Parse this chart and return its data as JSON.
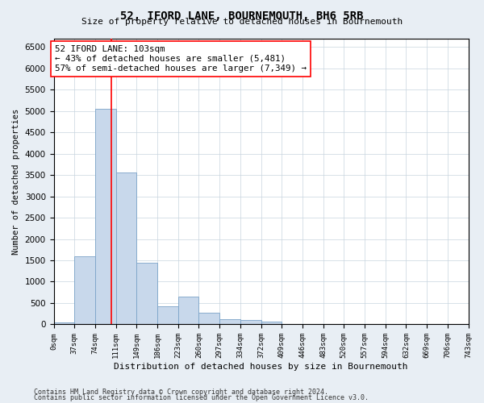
{
  "title": "52, IFORD LANE, BOURNEMOUTH, BH6 5RB",
  "subtitle": "Size of property relative to detached houses in Bournemouth",
  "xlabel": "Distribution of detached houses by size in Bournemouth",
  "ylabel": "Number of detached properties",
  "bar_color": "#c8d8eb",
  "bar_edge_color": "#7ba3c8",
  "vline_x": 103,
  "vline_color": "red",
  "annotation_text": "52 IFORD LANE: 103sqm\n← 43% of detached houses are smaller (5,481)\n57% of semi-detached houses are larger (7,349) →",
  "bin_width": 37,
  "bin_starts": [
    0,
    37,
    74,
    111,
    148,
    185,
    222,
    259,
    296,
    333,
    370,
    407,
    444,
    481,
    518,
    555,
    592,
    629,
    666,
    703
  ],
  "bin_labels": [
    "0sqm",
    "37sqm",
    "74sqm",
    "111sqm",
    "149sqm",
    "186sqm",
    "223sqm",
    "260sqm",
    "297sqm",
    "334sqm",
    "372sqm",
    "409sqm",
    "446sqm",
    "483sqm",
    "520sqm",
    "557sqm",
    "594sqm",
    "632sqm",
    "669sqm",
    "706sqm",
    "743sqm"
  ],
  "bar_heights": [
    50,
    1600,
    5050,
    3550,
    1450,
    430,
    650,
    270,
    130,
    100,
    60,
    0,
    0,
    0,
    0,
    0,
    0,
    0,
    0,
    0
  ],
  "ylim": [
    0,
    6700
  ],
  "yticks": [
    0,
    500,
    1000,
    1500,
    2000,
    2500,
    3000,
    3500,
    4000,
    4500,
    5000,
    5500,
    6000,
    6500
  ],
  "footnote1": "Contains HM Land Registry data © Crown copyright and database right 2024.",
  "footnote2": "Contains public sector information licensed under the Open Government Licence v3.0.",
  "bg_color": "#e8eef4",
  "plot_bg_color": "#ffffff"
}
